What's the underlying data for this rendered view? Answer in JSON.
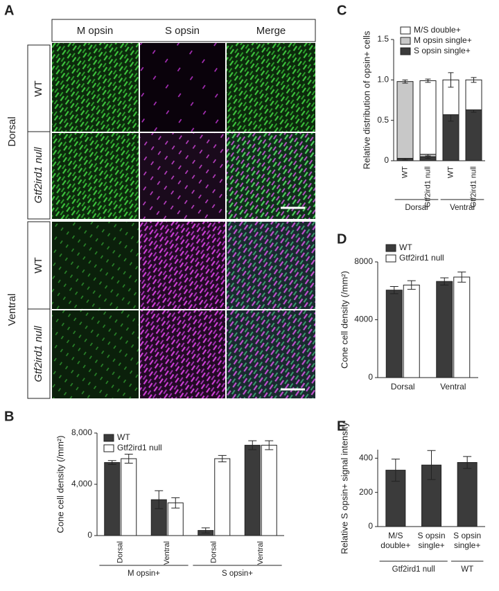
{
  "panel_a": {
    "label": "A",
    "columns": [
      "M opsin",
      "S opsin",
      "Merge"
    ],
    "regions": [
      {
        "name": "Dorsal",
        "rows": [
          "WT",
          "Gtf2ird1 null"
        ]
      },
      {
        "name": "Ventral",
        "rows": [
          "WT",
          "Gtf2ird1 null"
        ]
      }
    ]
  },
  "chart_data": [
    {
      "panel": "B",
      "type": "bar",
      "ylabel": "Cone cell density (/mm²)",
      "categories": [
        "Dorsal",
        "Ventral",
        "Dorsal",
        "Ventral"
      ],
      "group_labels": [
        "M opsin+",
        "S opsin+"
      ],
      "series": [
        {
          "name": "WT",
          "color": "#3b3b3b",
          "values": [
            5700,
            2800,
            400,
            7050
          ],
          "errors": [
            150,
            700,
            200,
            350
          ]
        },
        {
          "name": "Gtf2ird1 null",
          "color": "#ffffff",
          "values": [
            6000,
            2550,
            6000,
            7050
          ],
          "errors": [
            350,
            400,
            250,
            350
          ]
        }
      ],
      "ylim": [
        0,
        8000
      ],
      "yticks": [
        0,
        {
          "value": 4000,
          "label": "4,000"
        },
        {
          "value": 8000,
          "label": "8,000"
        }
      ]
    },
    {
      "panel": "C",
      "type": "stacked_bar",
      "ylabel": "Relative distribution of opsin+ cells",
      "categories": [
        "WT",
        "Gtf2ird1 null",
        "WT",
        "Gtf2ird1 null"
      ],
      "group_labels": [
        "Dorsal",
        "Ventral"
      ],
      "series": [
        {
          "name": "S opsin single+",
          "color": "#3b3b3b",
          "values": [
            0.03,
            0.05,
            0.57,
            0.63
          ],
          "errors": [
            0.02,
            0.02,
            0.08,
            0.03
          ]
        },
        {
          "name": "M opsin single+",
          "color": "#c8c8c8",
          "values": [
            0.95,
            0.03,
            0,
            0
          ],
          "errors": [
            0.02,
            0.02,
            0,
            0
          ]
        },
        {
          "name": "M/S double+",
          "color": "#ffffff",
          "values": [
            0,
            0.91,
            0.43,
            0.37
          ],
          "errors": [
            0,
            0.02,
            0.09,
            0.03
          ]
        }
      ],
      "ylim": [
        0,
        1.5
      ],
      "yticks": [
        0,
        0.5,
        {
          "value": 1,
          "label": "1.0"
        },
        {
          "value": 1.5,
          "label": "1.5"
        }
      ]
    },
    {
      "panel": "D",
      "type": "bar",
      "ylabel": "Cone cell density (/mm²)",
      "categories": [
        "Dorsal",
        "Ventral"
      ],
      "series": [
        {
          "name": "WT",
          "color": "#3b3b3b",
          "values": [
            6050,
            6650
          ],
          "errors": [
            250,
            250
          ]
        },
        {
          "name": "Gtf2ird1 null",
          "color": "#ffffff",
          "values": [
            6400,
            6950
          ],
          "errors": [
            300,
            350
          ]
        }
      ],
      "ylim": [
        0,
        8000
      ],
      "yticks": [
        0,
        4000,
        8000
      ]
    },
    {
      "panel": "E",
      "type": "bar",
      "ylabel": "Relative S opsin+ signal intensity",
      "categories": [
        [
          "M/S",
          "double+"
        ],
        [
          "S opsin",
          "single+"
        ],
        [
          "S opsin",
          "single+"
        ]
      ],
      "group_labels": [
        "Gtf2ird1 null",
        "WT"
      ],
      "series": [
        {
          "color": "#3b3b3b",
          "values": [
            330,
            360,
            375
          ],
          "errors": [
            65,
            85,
            35
          ]
        }
      ],
      "ylim": [
        0,
        450
      ],
      "yticks": [
        0,
        200,
        400
      ]
    }
  ]
}
